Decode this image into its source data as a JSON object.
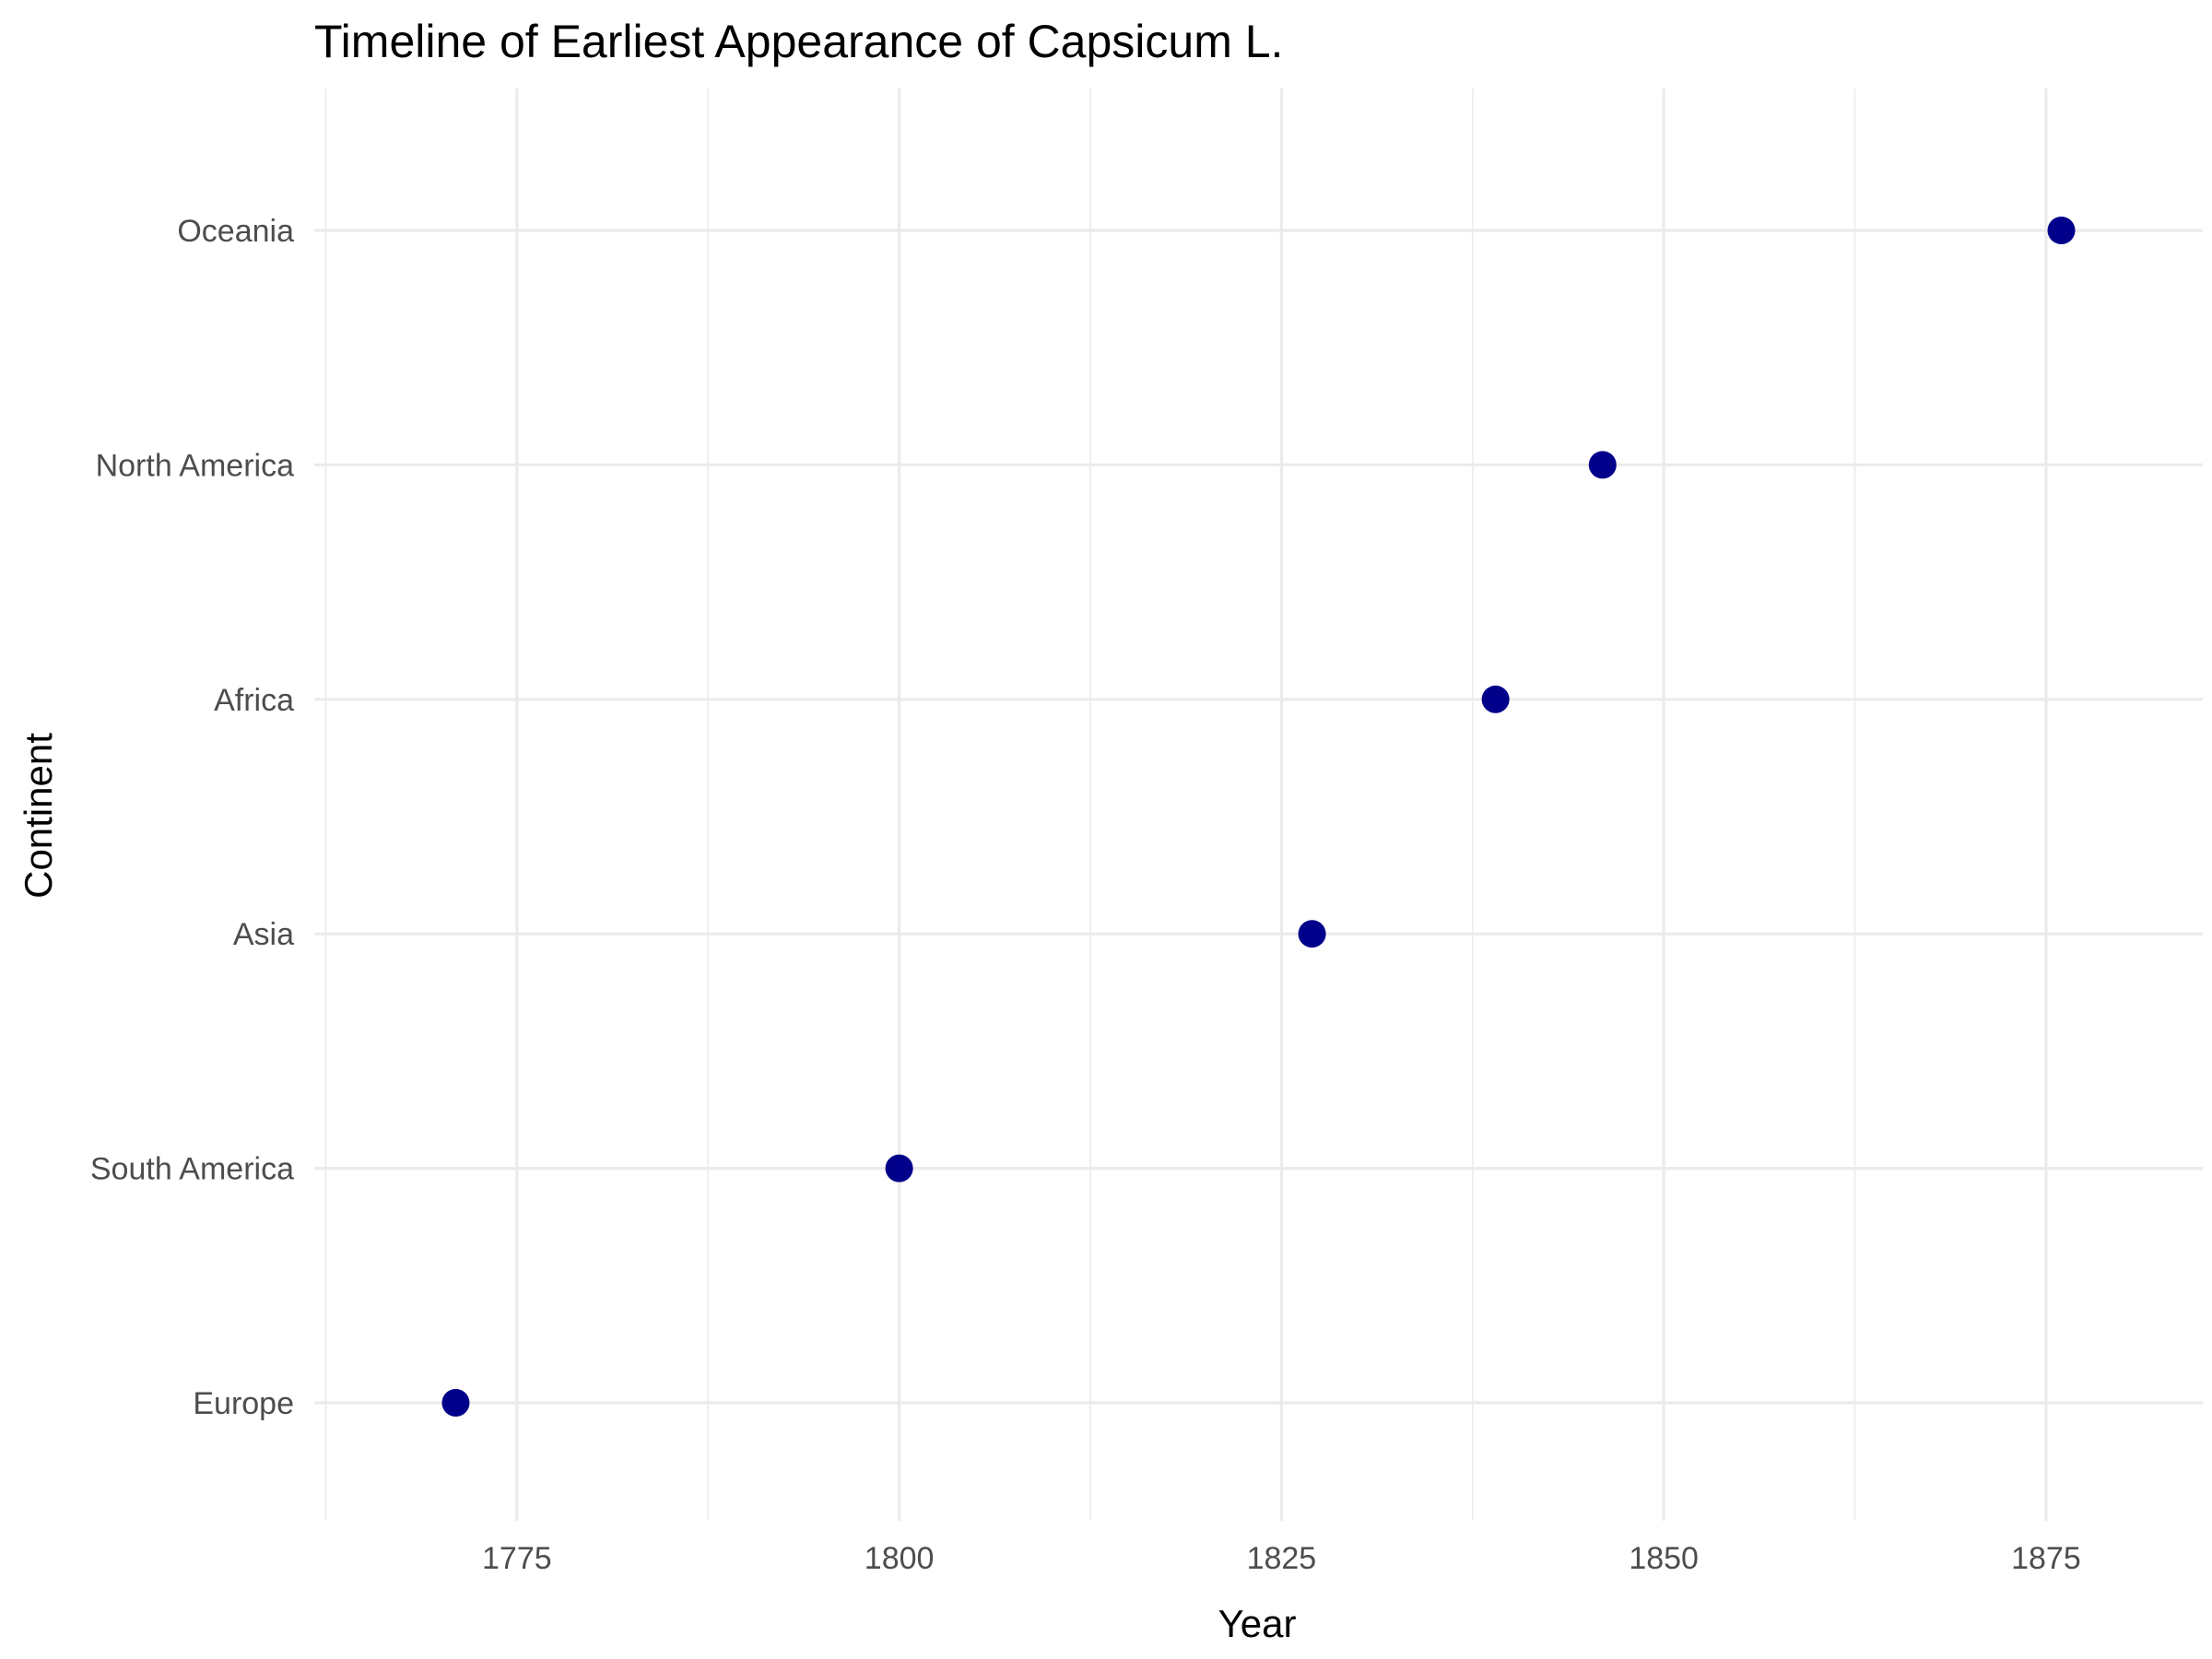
{
  "chart_data": {
    "type": "scatter",
    "title": "Timeline of Earliest Appearance of Capsicum L.",
    "xlabel": "Year",
    "ylabel": "Continent",
    "categories": [
      "Europe",
      "South America",
      "Asia",
      "Africa",
      "North America",
      "Oceania"
    ],
    "points": [
      {
        "continent": "Europe",
        "year": 1771
      },
      {
        "continent": "South America",
        "year": 1800
      },
      {
        "continent": "Asia",
        "year": 1827
      },
      {
        "continent": "Africa",
        "year": 1839
      },
      {
        "continent": "North America",
        "year": 1846
      },
      {
        "continent": "Oceania",
        "year": 1876
      }
    ],
    "xticks": [
      1775,
      1800,
      1825,
      1850,
      1875
    ],
    "xlim": [
      1761.75,
      1885.25
    ],
    "grid": true,
    "point_color": "#00008b"
  }
}
